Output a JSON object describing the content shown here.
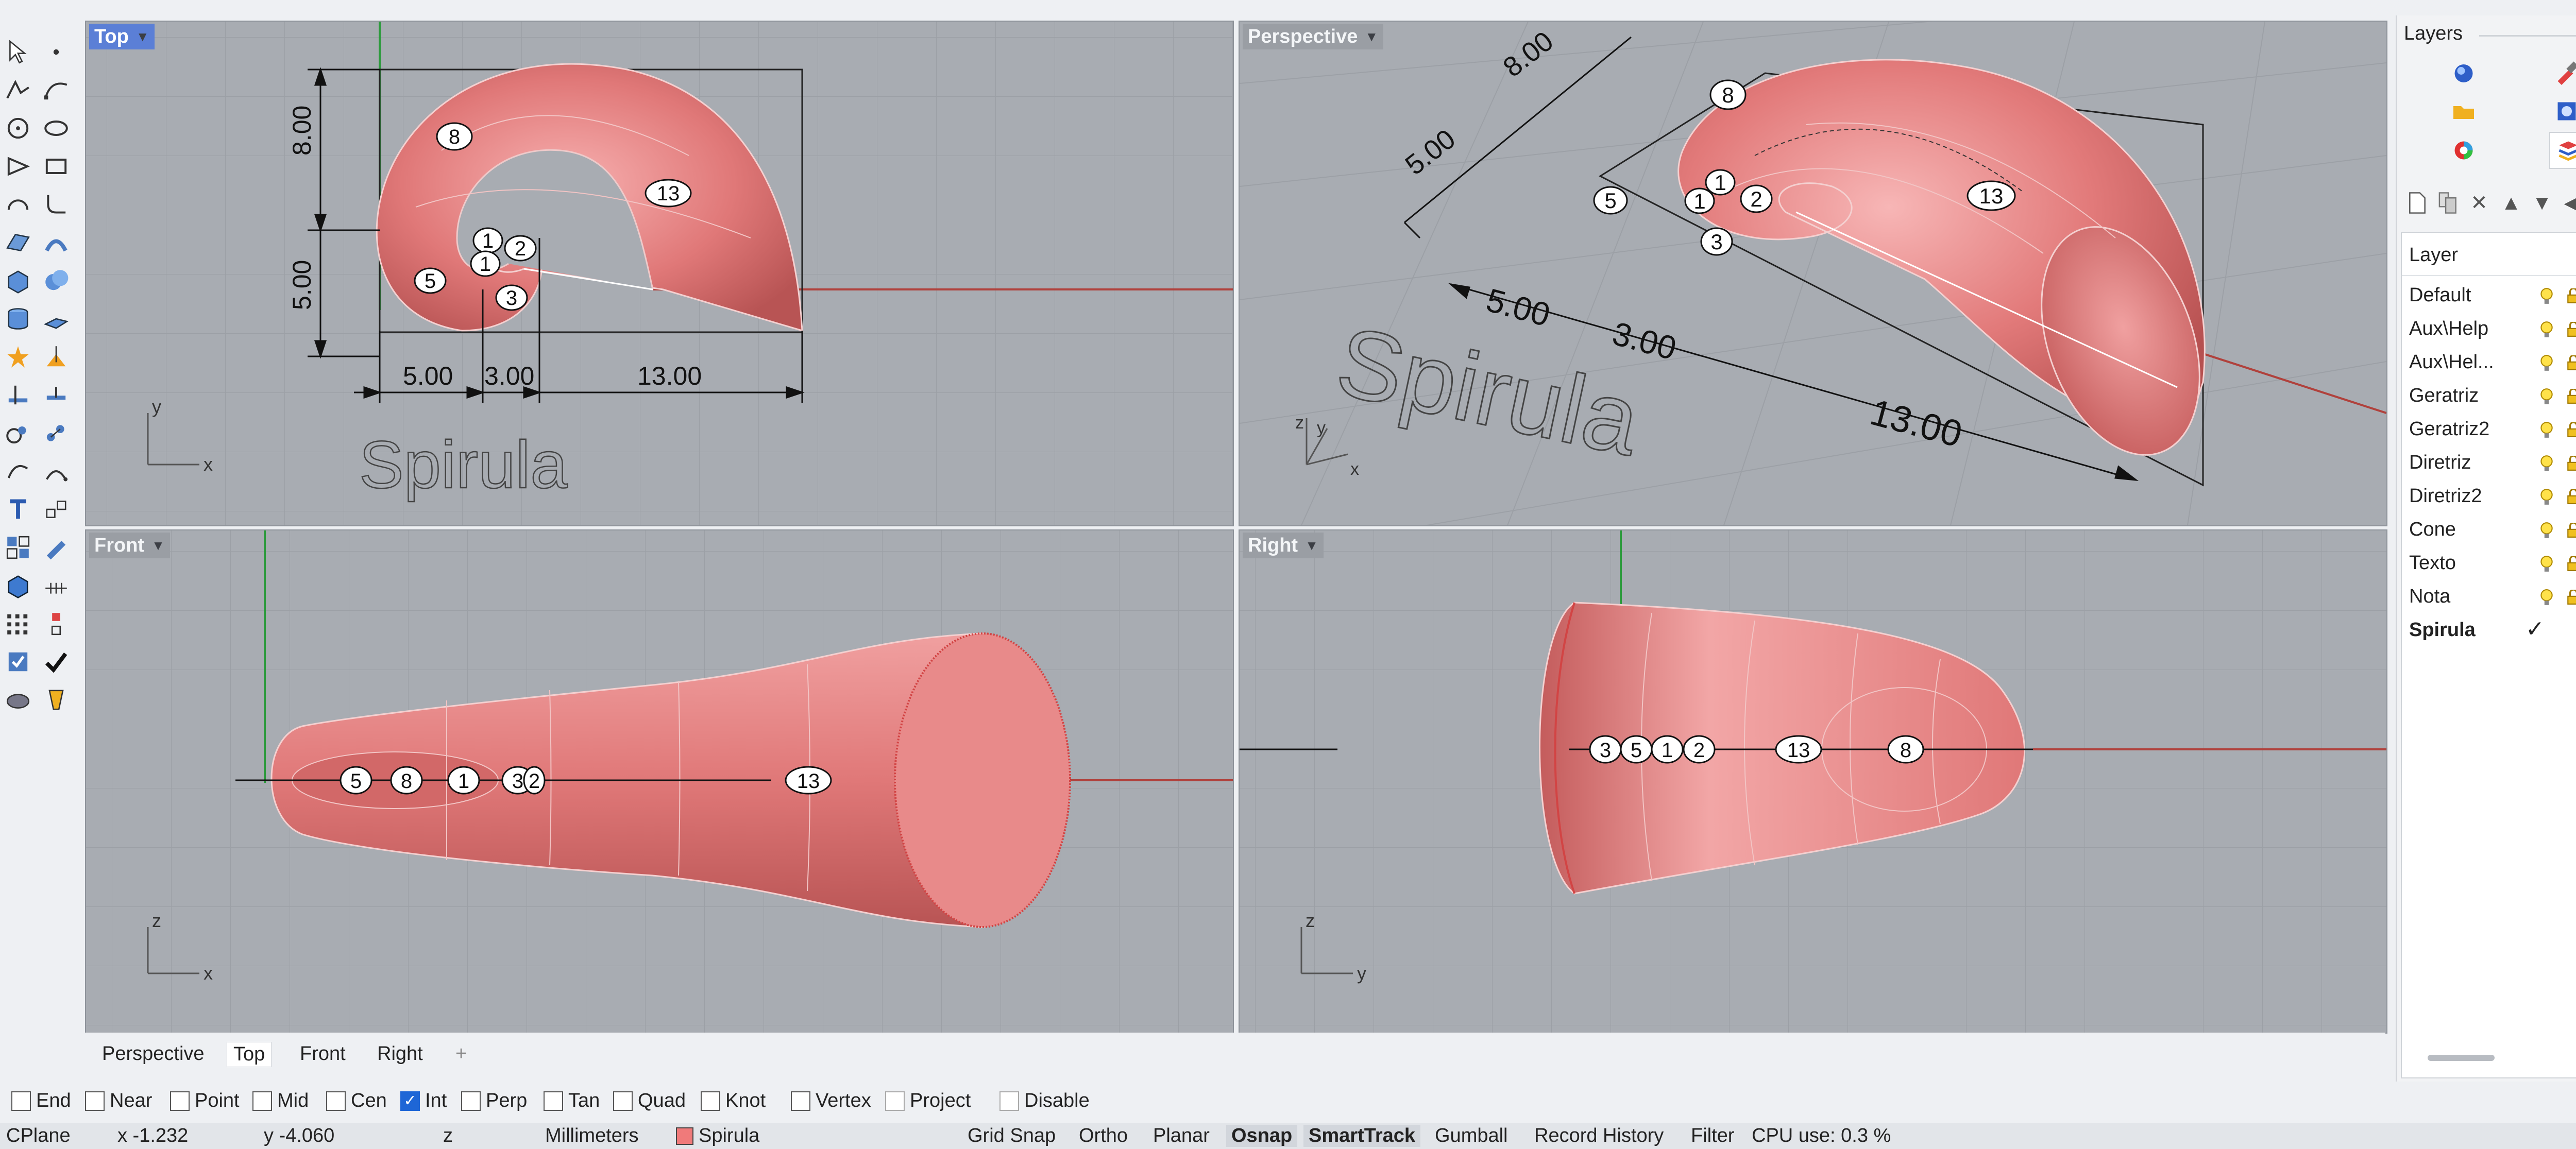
{
  "viewports": {
    "top": {
      "label": "Top",
      "active": true,
      "axis_x": "x",
      "axis_y": "y"
    },
    "perspective": {
      "label": "Perspective",
      "axis_x": "x",
      "axis_y": "y",
      "axis_z": "z"
    },
    "front": {
      "label": "Front",
      "axis_x": "x",
      "axis_z": "z"
    },
    "right": {
      "label": "Right",
      "axis_y": "y",
      "axis_z": "z"
    }
  },
  "model_text": "Spirula",
  "dimensions": {
    "d1": "5.00",
    "d2": "3.00",
    "d3": "13.00",
    "d4": "8.00",
    "d5": "5.00"
  },
  "annotations": {
    "a8": "8",
    "a13": "13",
    "a1": "1",
    "a2": "2",
    "a3": "3",
    "a5": "5"
  },
  "viewport_tabs": [
    "Perspective",
    "Top",
    "Front",
    "Right"
  ],
  "active_tab": "Top",
  "add_tab_symbol": "+",
  "osnaps": [
    {
      "label": "End",
      "checked": false
    },
    {
      "label": "Near",
      "checked": false
    },
    {
      "label": "Point",
      "checked": false
    },
    {
      "label": "Mid",
      "checked": false
    },
    {
      "label": "Cen",
      "checked": false
    },
    {
      "label": "Int",
      "checked": true
    },
    {
      "label": "Perp",
      "checked": false
    },
    {
      "label": "Tan",
      "checked": false
    },
    {
      "label": "Quad",
      "checked": false
    },
    {
      "label": "Knot",
      "checked": false
    },
    {
      "label": "Vertex",
      "checked": false
    },
    {
      "label": "Project",
      "checked": false
    },
    {
      "label": "Disable",
      "checked": false
    }
  ],
  "status": {
    "cplane": "CPlane",
    "x": "x -1.232",
    "y": "y -4.060",
    "z": "z",
    "units": "Millimeters",
    "layer": "Spirula",
    "layer_color": "#f07a7a",
    "grid_snap": "Grid Snap",
    "ortho": "Ortho",
    "planar": "Planar",
    "osnap": "Osnap",
    "smarttrack": "SmartTrack",
    "gumball": "Gumball",
    "record_history": "Record History",
    "filter": "Filter",
    "cpu": "CPU use: 0.3 %"
  },
  "layers_panel": {
    "title": "Layers",
    "column_header": "Layer",
    "current_mark": "✓",
    "rows": [
      {
        "name": "Default",
        "color": "#000000",
        "current": false
      },
      {
        "name": "Aux\\Help",
        "color": "#ffffff",
        "current": false
      },
      {
        "name": "Aux\\Hel...",
        "color": "#000000",
        "current": false
      },
      {
        "name": "Geratriz",
        "color": "#ff0000",
        "current": false
      },
      {
        "name": "Geratriz2",
        "color": "#0000ff",
        "current": false
      },
      {
        "name": "Diretriz",
        "color": "#ffffff",
        "current": false
      },
      {
        "name": "Diretriz2",
        "color": "#000000",
        "current": false
      },
      {
        "name": "Cone",
        "color": "#33dd33",
        "current": false
      },
      {
        "name": "Texto",
        "color": "#000000",
        "current": false
      },
      {
        "name": "Nota",
        "color": "#ffffff",
        "current": false
      },
      {
        "name": "Spirula",
        "color": "#f07a7a",
        "current": true
      }
    ]
  },
  "colors": {
    "viewport_bg": "#a8acb2",
    "surface": "#e07878",
    "active_tab": "#5b7fd6",
    "grid": "#9ca0a6"
  }
}
